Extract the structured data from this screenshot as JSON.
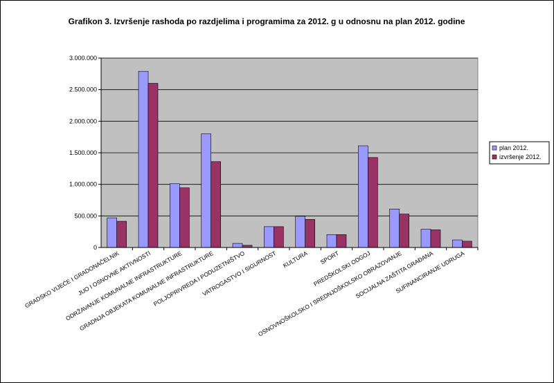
{
  "chart_data": {
    "type": "bar",
    "title": "Grafikon 3. Izvršenje rashoda po razdjelima i programima za 2012. g u odnosnu na plan 2012. godine",
    "categories": [
      "GRADSKO VIJEĆE I GRADONAČELNIK",
      "JUO I OSNOVNE AKTIVNOSTI",
      "ODRŽAVANJE KOMUNALNE INFRASTRUKTURE",
      "GRADNJA OBJEKATA KOMUNALNE INFRASTRUKTURE",
      "POLJOPRIVREDA I PODUZETNIŠTVO",
      "VATROGASTVO I SIGURNOST",
      "KULTURA",
      "SPORT",
      "PREDŠKOLSKI ODGOJ",
      "OSNOVNOŠKOLSKO I SREDNJOŠKOLSKO OBRAZOVANJE",
      "SOCIJALNA ZAŠTITA GRAĐANA",
      "SUFINANCIRANJE UDRUGA"
    ],
    "series": [
      {
        "name": "plan 2012.",
        "color": "#9999ff",
        "values": [
          470000,
          2790000,
          1010000,
          1800000,
          65000,
          330000,
          495000,
          205000,
          1610000,
          610000,
          290000,
          120000
        ]
      },
      {
        "name": "izvršenje 2012.",
        "color": "#993366",
        "values": [
          415000,
          2600000,
          945000,
          1360000,
          35000,
          330000,
          445000,
          205000,
          1425000,
          530000,
          280000,
          100000
        ]
      }
    ],
    "ylim": [
      0,
      3000000
    ],
    "yticks": [
      "0",
      "500.000",
      "1.000.000",
      "1.500.000",
      "2.000.000",
      "2.500.000",
      "3.000.000"
    ],
    "grid": true,
    "legend_position": "right",
    "plot_background": "#c0c0c0"
  }
}
